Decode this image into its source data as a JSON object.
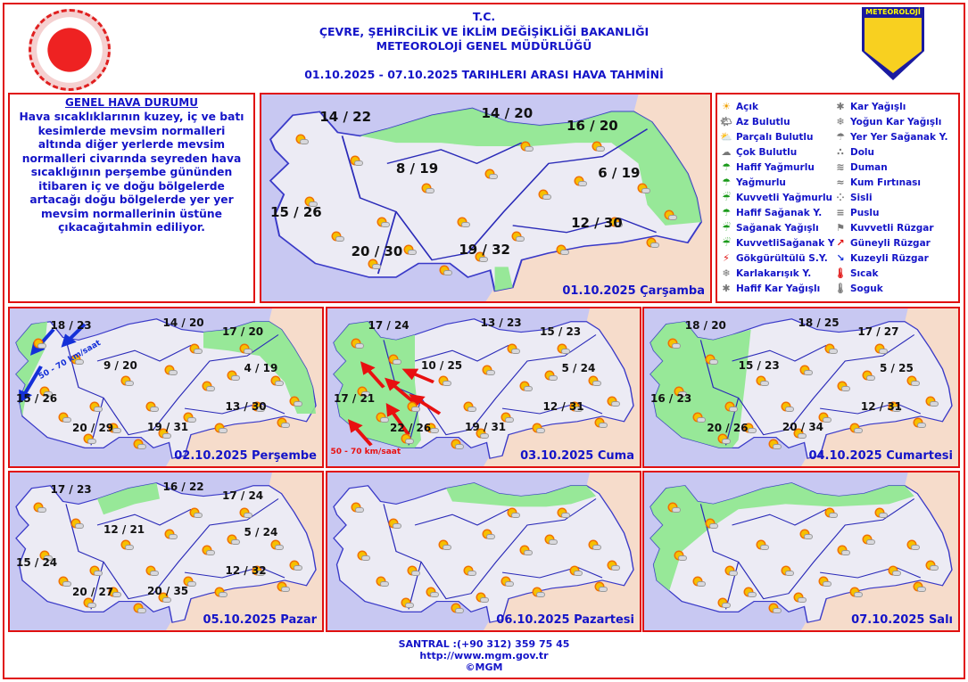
{
  "header": {
    "line1": "T.C.",
    "line2": "ÇEVRE, ŞEHİRCİLİK VE İKLİM DEĞİŞİKLİĞİ BAKANLIĞI",
    "line3": "METEOROLOJİ  GENEL  MÜDÜRLÜĞÜ",
    "period": "01.10.2025  -  07.10.2025   TARIHLERI  ARASI  HAVA  TAHMİNİ",
    "mgm_logo_text": "METEOROLOJİ"
  },
  "general": {
    "title": "GENEL HAVA DURUMU",
    "text": "Hava sıcaklıklarının kuzey, iç ve batı kesimlerde mevsim normalleri altında diğer yerlerde mevsim normalleri civarında seyreden hava sıcaklığının perşembe gününden itibaren iç ve doğu bölgelerde artacağı doğu bölgelerde yer yer mevsim normallerinin üstüne çıkacağıtahmin ediliyor."
  },
  "legend": [
    {
      "label": "Açık",
      "icon": "sun-icon"
    },
    {
      "label": "Kar Yağışlı",
      "icon": "snow-icon"
    },
    {
      "label": "Az Bulutlu",
      "icon": "few-clouds-icon"
    },
    {
      "label": "Yoğun Kar Yağışlı",
      "icon": "heavy-snow-icon"
    },
    {
      "label": "Parçalı Bulutlu",
      "icon": "partly-cloudy-icon"
    },
    {
      "label": "Yer Yer Sağanak Y.",
      "icon": "scattered-showers-icon"
    },
    {
      "label": "Çok Bulutlu",
      "icon": "cloudy-icon"
    },
    {
      "label": "Dolu",
      "icon": "hail-icon"
    },
    {
      "label": "Hafif Yağmurlu",
      "icon": "light-rain-icon"
    },
    {
      "label": "Duman",
      "icon": "smoke-icon"
    },
    {
      "label": "Yağmurlu",
      "icon": "rain-icon"
    },
    {
      "label": "Kum Fırtınası",
      "icon": "sandstorm-icon"
    },
    {
      "label": "Kuvvetli Yağmurlu",
      "icon": "heavy-rain-icon"
    },
    {
      "label": "Sisli",
      "icon": "fog-icon"
    },
    {
      "label": "Hafif Sağanak Y.",
      "icon": "light-shower-icon"
    },
    {
      "label": "Puslu",
      "icon": "haze-icon"
    },
    {
      "label": "Sağanak Yağışlı",
      "icon": "shower-icon"
    },
    {
      "label": "Kuvvetli Rüzgar",
      "icon": "strong-wind-icon"
    },
    {
      "label": "KuvvetliSağanak Y",
      "icon": "heavy-shower-icon"
    },
    {
      "label": "Güneyli Rüzgar",
      "icon": "south-wind-arrow-icon"
    },
    {
      "label": "Gökgürültülü S.Y.",
      "icon": "thunderstorm-icon"
    },
    {
      "label": "Kuzeyli Rüzgar",
      "icon": "north-wind-arrow-icon"
    },
    {
      "label": "Karlakarışık Y.",
      "icon": "sleet-icon"
    },
    {
      "label": "Sıcak",
      "icon": "hot-icon"
    },
    {
      "label": "Hafif Kar Yağışlı",
      "icon": "light-snow-icon"
    },
    {
      "label": "Soguk",
      "icon": "cold-icon"
    }
  ],
  "colors": {
    "text": "#1414c8",
    "border": "#e01010",
    "sea": "#c8c8f2",
    "land": "#ecebf4",
    "neighbor": "#f6dccb",
    "rain_area": "#8ee88e",
    "south_wind": "#e81010",
    "north_wind": "#1430d8"
  },
  "days": [
    {
      "date": "01.10.2025 Çarşamba",
      "temps": [
        "14 / 22",
        "14 / 20",
        "16 / 20",
        "8 / 19",
        "6 / 19",
        "15 / 26",
        "12 / 30",
        "20 / 30",
        "19 / 32"
      ]
    },
    {
      "date": "02.10.2025 Perşembe",
      "temps": [
        "18 / 23",
        "14 / 20",
        "17 / 20",
        "9 / 20",
        "4 / 19",
        "15 / 26",
        "13 / 30",
        "20 / 29",
        "19 / 31"
      ],
      "wind": "50 - 70 km/saat"
    },
    {
      "date": "03.10.2025 Cuma",
      "temps": [
        "17 / 24",
        "13 / 23",
        "15 / 23",
        "10 / 25",
        "5 / 24",
        "17 / 21",
        "12 / 31",
        "22 / 26",
        "19 / 31"
      ],
      "wind": "50 - 70 km/saat"
    },
    {
      "date": "04.10.2025 Cumartesi",
      "temps": [
        "18 / 20",
        "18 / 25",
        "17 / 27",
        "15 / 23",
        "5 / 25",
        "16 / 23",
        "12 / 31",
        "20 / 26",
        "20 / 34"
      ]
    },
    {
      "date": "05.10.2025 Pazar",
      "temps": [
        "17 / 23",
        "16 / 22",
        "17 / 24",
        "12 / 21",
        "5 / 24",
        "15 / 24",
        "12 / 32",
        "20 / 27",
        "20 / 35"
      ]
    },
    {
      "date": "06.10.2025 Pazartesi",
      "temps": []
    },
    {
      "date": "07.10.2025 Salı",
      "temps": []
    }
  ],
  "footer": {
    "phone": "SANTRAL :(+90 312) 359 75 45",
    "url": "http://www.mgm.gov.tr",
    "copyright": "©MGM"
  }
}
